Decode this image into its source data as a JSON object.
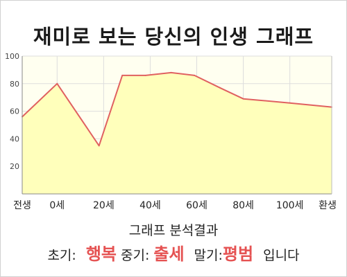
{
  "title": "재미로 보는 당신의 인생 그래프",
  "chart_data": {
    "type": "area",
    "x_ticks": [
      {
        "x": -15,
        "label": "전생"
      },
      {
        "x": 0,
        "label": "0세"
      },
      {
        "x": 20,
        "label": "20세"
      },
      {
        "x": 40,
        "label": "40세"
      },
      {
        "x": 60,
        "label": "60세"
      },
      {
        "x": 80,
        "label": "80세"
      },
      {
        "x": 100,
        "label": "100세"
      },
      {
        "x": 118,
        "label": "환생"
      }
    ],
    "y_ticks": [
      20,
      40,
      60,
      80,
      100
    ],
    "xlim": [
      -15,
      118
    ],
    "ylim": [
      0,
      100
    ],
    "points": [
      {
        "x": -15,
        "y": 56
      },
      {
        "x": 0,
        "y": 80
      },
      {
        "x": 18,
        "y": 35
      },
      {
        "x": 28,
        "y": 86
      },
      {
        "x": 38,
        "y": 86
      },
      {
        "x": 49,
        "y": 88
      },
      {
        "x": 59,
        "y": 86
      },
      {
        "x": 70,
        "y": 77
      },
      {
        "x": 80,
        "y": 69
      },
      {
        "x": 100,
        "y": 66
      },
      {
        "x": 118,
        "y": 63
      }
    ],
    "grid": true,
    "colors": {
      "line": "#e06060",
      "fill": "#ffffbb",
      "plot_bg": "#fffff0",
      "grid": "#dddddd"
    }
  },
  "analysis": {
    "title": "그래프 분석결과",
    "early_label": "초기:",
    "early_value": "행복",
    "middle_label": "중기:",
    "middle_value": "출세",
    "late_label": "말기:",
    "late_value": "평범",
    "suffix": "입니다"
  }
}
